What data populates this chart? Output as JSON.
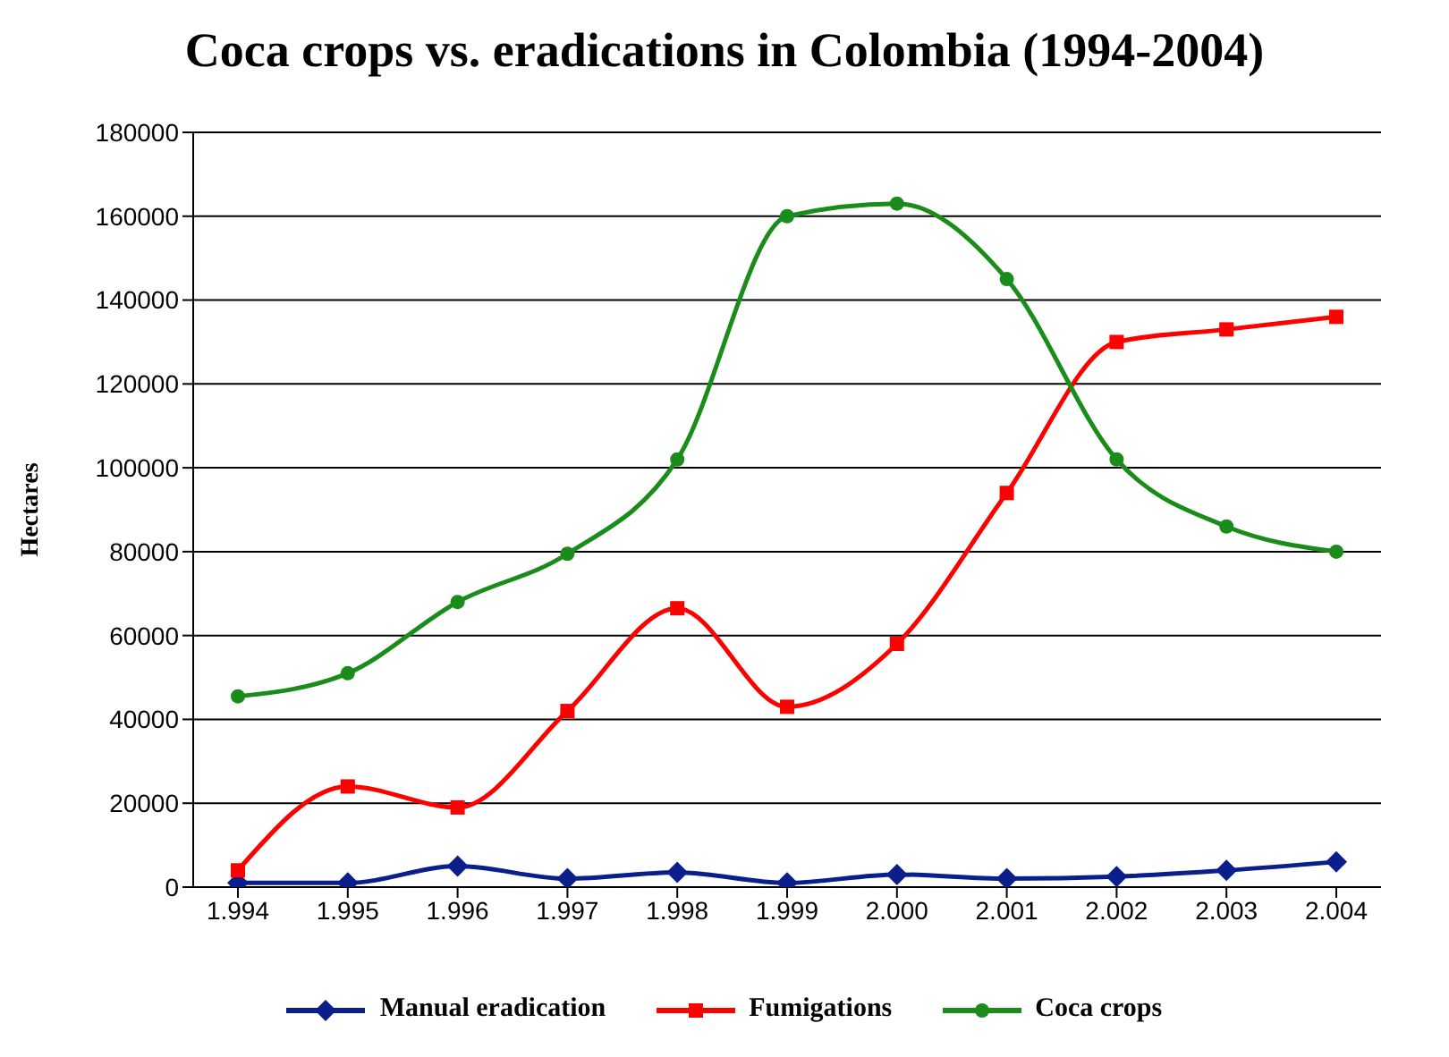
{
  "chart_data": {
    "type": "line",
    "title": "Coca crops vs. eradications in Colombia (1994-2004)",
    "ylabel": "Hectares",
    "categories": [
      "1.994",
      "1.995",
      "1.996",
      "1.997",
      "1.998",
      "1.999",
      "2.000",
      "2.001",
      "2.002",
      "2.003",
      "2.004"
    ],
    "series": [
      {
        "name": "Manual eradication",
        "color": "#0b1f8c",
        "marker": "diamond",
        "values": [
          1000,
          1000,
          5000,
          2000,
          3500,
          1000,
          3000,
          2000,
          2500,
          4000,
          6000
        ]
      },
      {
        "name": "Fumigations",
        "color": "#ff0000",
        "marker": "square",
        "values": [
          4000,
          24000,
          19000,
          42000,
          66500,
          43000,
          58000,
          94000,
          130000,
          133000,
          136000
        ]
      },
      {
        "name": "Coca crops",
        "color": "#1a8c1a",
        "marker": "circle",
        "values": [
          45500,
          51000,
          68000,
          79500,
          102000,
          160000,
          163000,
          145000,
          102000,
          86000,
          80000
        ]
      }
    ],
    "ylim": [
      0,
      180000
    ],
    "yticks": [
      0,
      20000,
      40000,
      60000,
      80000,
      100000,
      120000,
      140000,
      160000,
      180000
    ],
    "grid": "y",
    "legend": "bottom"
  }
}
